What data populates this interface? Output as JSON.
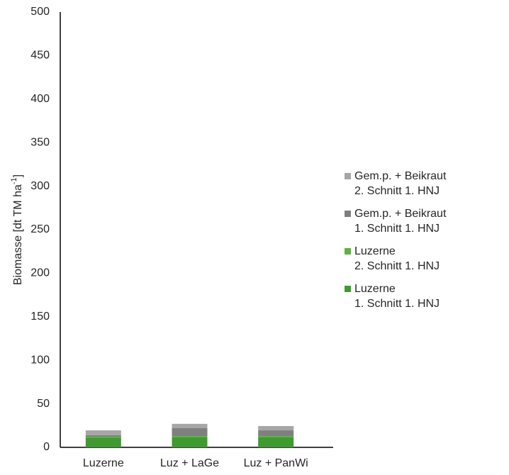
{
  "chart_data": {
    "type": "stacked_bar",
    "y_label": [
      "Biomasse [dt TM ha",
      "-1",
      "]"
    ],
    "categories": [
      "Luzerne",
      "Luz + LaGe",
      "Luz + PanWi"
    ],
    "series": [
      {
        "name": "Luzerne\n1. Schnitt 1. HNJ",
        "color": "#3f9a2f",
        "values": [
          11,
          12,
          12
        ]
      },
      {
        "name": "Luzerne\n2. Schnitt 1. HNJ",
        "color": "#5cb33e",
        "values": [
          1,
          1,
          1
        ]
      },
      {
        "name": "Gem.p. + Beikraut\n1. Schnitt 1. HNJ",
        "color": "#7f7f7f",
        "values": [
          2,
          9,
          6.5
        ]
      },
      {
        "name": "Gem.p. + Beikraut\n2. Schnitt 1. HNJ",
        "color": "#a6a6a6",
        "values": [
          5.5,
          5,
          5
        ]
      }
    ],
    "ylim": [
      0,
      500
    ],
    "yticks": [
      0,
      50,
      100,
      150,
      200,
      250,
      300,
      350,
      400,
      450,
      500
    ],
    "grid": false
  }
}
